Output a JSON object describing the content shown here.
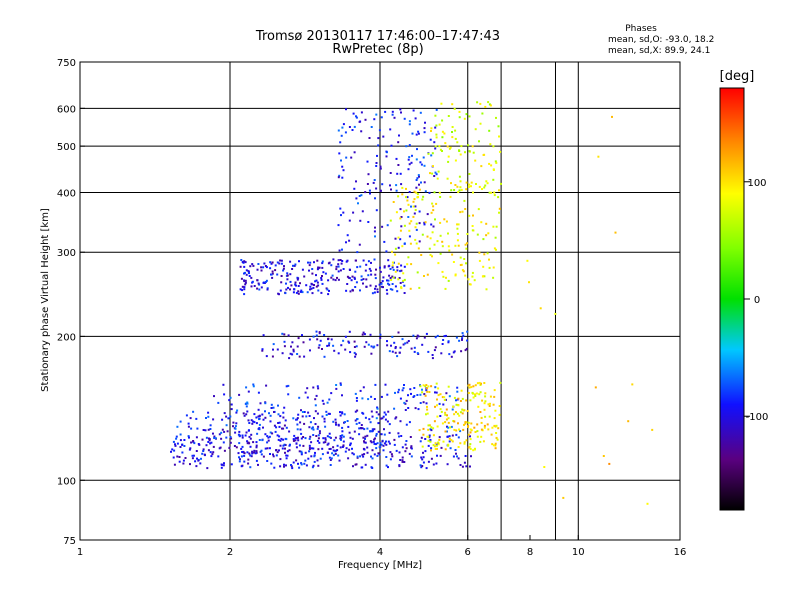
{
  "chart_data": {
    "type": "scatter",
    "title": "Tromsø 20130117 17:46:00–17:47:43",
    "subtitle": "RwPretec (8p)",
    "xlabel": "Frequency [MHz]",
    "ylabel": "Stationary phase Virtual Height [km]",
    "x_scale": "log",
    "y_scale": "log",
    "xlim": [
      1,
      16
    ],
    "ylim": [
      75,
      750
    ],
    "x_ticks": [
      1,
      2,
      4,
      6,
      8,
      10,
      16
    ],
    "y_ticks": [
      75,
      100,
      200,
      300,
      400,
      500,
      600,
      750
    ],
    "x_gridlines": [
      2,
      4,
      6,
      7,
      9,
      10
    ],
    "y_gridlines": [
      100,
      200,
      300,
      400,
      500,
      600
    ],
    "grid": true,
    "stats": {
      "heading": "Phases",
      "line1": "mean, sd,O:  -93.0, 18.2",
      "line2": "mean, sd,X:  89.9, 24.1"
    },
    "colorbar": {
      "label": "[deg]",
      "range": [
        -180,
        180
      ],
      "ticks": [
        100,
        0,
        -100
      ],
      "colormap": "rainbow (black-purple-blue-cyan-green-yellow-red)"
    },
    "clusters": [
      {
        "name": "o-lower-trace",
        "x_range": [
          1.5,
          6.2
        ],
        "y_range": [
          106,
          125
        ],
        "phase": -100,
        "density": 0.85
      },
      {
        "name": "o-lower-band2",
        "x_range": [
          1.55,
          4.2
        ],
        "y_range": [
          112,
          140
        ],
        "phase": -95,
        "density": 0.6
      },
      {
        "name": "o-mid-band",
        "x_range": [
          1.8,
          5.8
        ],
        "y_range": [
          125,
          160
        ],
        "phase": -90,
        "density": 0.5
      },
      {
        "name": "o-200km-band",
        "x_range": [
          2.3,
          6.0
        ],
        "y_range": [
          180,
          205
        ],
        "phase": -98,
        "density": 0.35
      },
      {
        "name": "o-F-trace",
        "x_range": [
          2.1,
          4.5
        ],
        "y_range": [
          245,
          290
        ],
        "phase": -100,
        "density": 0.7
      },
      {
        "name": "o-upper-cusp",
        "x_range": [
          3.3,
          5.2
        ],
        "y_range": [
          300,
          600
        ],
        "phase": -92,
        "density": 0.45
      },
      {
        "name": "x-lower-trace",
        "x_range": [
          4.8,
          7.0
        ],
        "y_range": [
          115,
          160
        ],
        "phase": 95,
        "density": 0.5
      },
      {
        "name": "x-F-trace",
        "x_range": [
          4.2,
          7.0
        ],
        "y_range": [
          250,
          420
        ],
        "phase": 85,
        "density": 0.45
      },
      {
        "name": "x-upper",
        "x_range": [
          5.0,
          7.0
        ],
        "y_range": [
          400,
          620
        ],
        "phase": 75,
        "density": 0.25
      },
      {
        "name": "scatter-high-freq",
        "x_range": [
          7.5,
          15.0
        ],
        "y_range": [
          80,
          600
        ],
        "phase": 110,
        "density": 0.04
      }
    ]
  }
}
